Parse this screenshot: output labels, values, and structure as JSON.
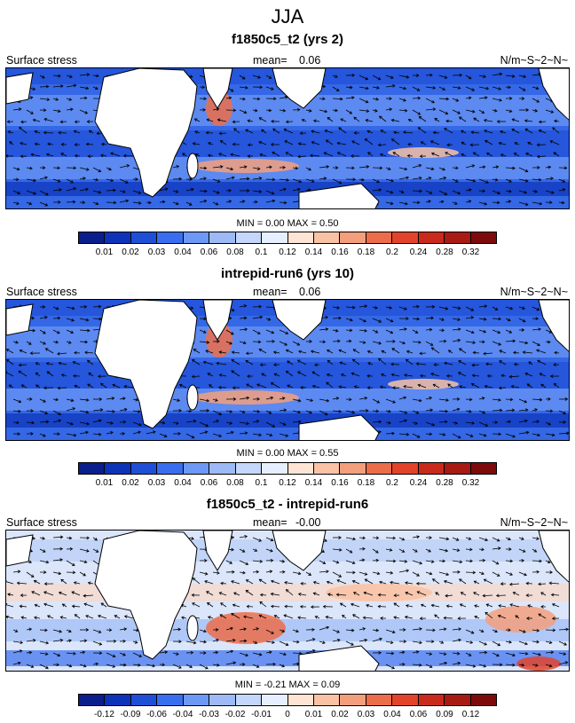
{
  "title": "JJA",
  "panels": [
    {
      "title": "f1850c5_t2 (yrs 2)",
      "left_label": "Surface stress",
      "mean_label": "mean=",
      "mean_value": "0.06",
      "units": "N/m~S~2~N~",
      "stats_text": "MIN =   0.00 MAX =   0.50",
      "palette": "abs"
    },
    {
      "title": "intrepid-run6 (yrs 10)",
      "left_label": "Surface stress",
      "mean_label": "mean=",
      "mean_value": "0.06",
      "units": "N/m~S~2~N~",
      "stats_text": "MIN =   0.00 MAX =   0.55",
      "palette": "abs"
    },
    {
      "title": "f1850c5_t2 - intrepid-run6",
      "left_label": "Surface stress",
      "mean_label": "mean=",
      "mean_value": "-0.00",
      "units": "N/m~S~2~N~",
      "stats_text": "MIN =  -0.21 MAX =   0.09",
      "palette": "diff"
    }
  ],
  "colorbar_abs": {
    "ticks": [
      "0.01",
      "0.02",
      "0.03",
      "0.04",
      "0.06",
      "0.08",
      "0.1",
      "0.12",
      "0.14",
      "0.16",
      "0.18",
      "0.2",
      "0.24",
      "0.28",
      "0.32"
    ],
    "colors": [
      "#0a1e8c",
      "#0d33b8",
      "#1f4fd6",
      "#3a6ef0",
      "#6e98f5",
      "#9dbaf7",
      "#c4d7fa",
      "#e6efff",
      "#fde4d4",
      "#f9c2a5",
      "#f39f7c",
      "#ec6d4a",
      "#e3432a",
      "#c92a1b",
      "#a71b12",
      "#7d0b0b"
    ]
  },
  "colorbar_diff": {
    "ticks": [
      "-0.12",
      "-0.09",
      "-0.06",
      "-0.04",
      "-0.03",
      "-0.02",
      "-0.01",
      "0",
      "0.01",
      "0.02",
      "0.03",
      "0.04",
      "0.06",
      "0.09",
      "0.12"
    ],
    "colors": [
      "#0a1e8c",
      "#0d33b8",
      "#1f4fd6",
      "#3a6ef0",
      "#6e98f5",
      "#9dbaf7",
      "#c4d7fa",
      "#e6efff",
      "#fde4d4",
      "#f9c2a5",
      "#f39f7c",
      "#ec6d4a",
      "#e3432a",
      "#c92a1b",
      "#a71b12",
      "#7d0b0b"
    ]
  }
}
